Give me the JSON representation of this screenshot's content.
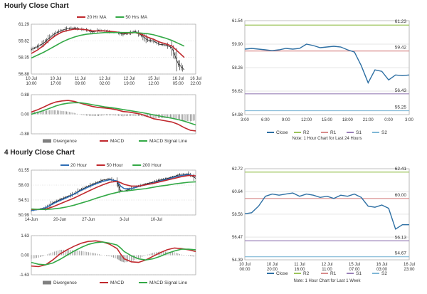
{
  "sections": {
    "hourly_title": "Hourly Close Chart",
    "four_hourly_title": "4 Hourly Close Chart"
  },
  "colors": {
    "price": "#111111",
    "ma_red": "#c0282d",
    "ma_green": "#33a946",
    "ma_blue": "#2e6db4",
    "close": "#2d6fa3",
    "r1": "#d98c8c",
    "r2": "#9cc45a",
    "s1": "#9a80b8",
    "s2": "#7fb7d6",
    "divergence": "#808080"
  },
  "chart_data": [
    {
      "id": "hourly_price",
      "type": "line",
      "title": "Hourly Close Chart",
      "ylim": [
        56.88,
        61.29
      ],
      "yticks": [
        "61.29",
        "59.82",
        "58.35",
        "56.88"
      ],
      "x": [
        0,
        8,
        16,
        24,
        32,
        40,
        48,
        56,
        64,
        72,
        80,
        88,
        96,
        104,
        112,
        120,
        128,
        136,
        144,
        152,
        160,
        168,
        176,
        184,
        192,
        200
      ],
      "xticks": [
        {
          "pos": 0,
          "label": "10 Jul",
          "sub": "10:00"
        },
        {
          "pos": 32,
          "label": "10 Jul",
          "sub": "17:00"
        },
        {
          "pos": 64,
          "label": "11 Jul",
          "sub": "09:00"
        },
        {
          "pos": 96,
          "label": "12 Jul",
          "sub": "02:00"
        },
        {
          "pos": 128,
          "label": "12 Jul",
          "sub": "19:00"
        },
        {
          "pos": 160,
          "label": "15 Jul",
          "sub": "12:00"
        },
        {
          "pos": 192,
          "label": "16 Jul",
          "sub": "05:00"
        },
        {
          "pos": 215,
          "label": "16 Jul",
          "sub": "22:00"
        }
      ],
      "xmax": 215,
      "legend": [
        "20 Hr MA",
        "50 Hrs MA"
      ],
      "series": [
        {
          "name": "Price",
          "color": "#111111",
          "values": [
            59.05,
            59.3,
            59.6,
            60.1,
            60.5,
            60.75,
            60.9,
            60.95,
            60.85,
            60.8,
            60.6,
            60.75,
            60.7,
            60.6,
            60.55,
            60.4,
            60.5,
            60.65,
            60.3,
            59.9,
            59.8,
            59.5,
            59.45,
            59.2,
            57.8,
            57.25
          ]
        },
        {
          "name": "20 Hr MA",
          "color": "#c0282d",
          "values": [
            58.7,
            59.0,
            59.4,
            59.9,
            60.3,
            60.6,
            60.75,
            60.85,
            60.85,
            60.8,
            60.7,
            60.7,
            60.7,
            60.65,
            60.6,
            60.5,
            60.5,
            60.55,
            60.4,
            60.15,
            59.95,
            59.7,
            59.55,
            59.35,
            58.85,
            58.35
          ]
        },
        {
          "name": "50 Hrs MA",
          "color": "#33a946",
          "values": [
            58.3,
            58.55,
            58.8,
            59.1,
            59.4,
            59.7,
            59.95,
            60.15,
            60.3,
            60.4,
            60.45,
            60.5,
            60.55,
            60.55,
            60.55,
            60.55,
            60.55,
            60.55,
            60.5,
            60.45,
            60.35,
            60.2,
            60.05,
            59.85,
            59.6,
            59.35
          ]
        }
      ]
    },
    {
      "id": "hourly_macd",
      "type": "line",
      "ylim": [
        -0.88,
        0.88
      ],
      "yticks": [
        "0.88",
        "0.00",
        "-0.88"
      ],
      "legend": [
        "Divergence",
        "MACD",
        "MACD Signal Line"
      ],
      "x": [
        0,
        8,
        16,
        24,
        32,
        40,
        48,
        56,
        64,
        72,
        80,
        88,
        96,
        104,
        112,
        120,
        128,
        136,
        144,
        152,
        160,
        168,
        176,
        184,
        192,
        200,
        208,
        215
      ],
      "xmax": 215,
      "series": [
        {
          "name": "MACD",
          "color": "#c0282d",
          "values": [
            0.1,
            0.2,
            0.32,
            0.45,
            0.55,
            0.6,
            0.62,
            0.58,
            0.5,
            0.42,
            0.35,
            0.3,
            0.28,
            0.25,
            0.2,
            0.12,
            0.1,
            0.05,
            0.0,
            -0.1,
            -0.2,
            -0.25,
            -0.3,
            -0.35,
            -0.45,
            -0.6,
            -0.72,
            -0.75
          ]
        },
        {
          "name": "MACD Signal Line",
          "color": "#33a946",
          "values": [
            0.0,
            0.08,
            0.17,
            0.27,
            0.37,
            0.45,
            0.5,
            0.52,
            0.52,
            0.48,
            0.43,
            0.38,
            0.33,
            0.3,
            0.26,
            0.21,
            0.17,
            0.12,
            0.08,
            0.03,
            -0.03,
            -0.08,
            -0.13,
            -0.18,
            -0.24,
            -0.31,
            -0.4,
            -0.48
          ]
        },
        {
          "name": "Divergence",
          "color": "#808080",
          "values": [
            0.1,
            0.12,
            0.15,
            0.18,
            0.18,
            0.15,
            0.12,
            0.06,
            -0.02,
            -0.06,
            -0.08,
            -0.08,
            -0.05,
            -0.05,
            -0.06,
            -0.09,
            -0.07,
            -0.07,
            -0.08,
            -0.13,
            -0.17,
            -0.17,
            -0.17,
            -0.17,
            -0.21,
            -0.29,
            -0.32,
            -0.27
          ]
        }
      ]
    },
    {
      "id": "hourly_pivots",
      "type": "line",
      "note": "Note: 1 Hour Chart for Last 24 Hours",
      "ylim": [
        54.98,
        61.54
      ],
      "yticks": [
        "61.54",
        "59.90",
        "58.26",
        "56.62",
        "54.98"
      ],
      "xticks": [
        "3:00",
        "6:00",
        "9:00",
        "12:00",
        "15:00",
        "18:00",
        "21:00",
        "0:00",
        "3:00"
      ],
      "xmax": 24,
      "x": [
        0,
        1,
        2,
        3,
        4,
        5,
        6,
        7,
        8,
        9,
        10,
        11,
        12,
        13,
        14,
        15,
        16,
        17,
        18,
        19,
        20,
        21,
        22,
        23,
        24
      ],
      "levels": [
        {
          "name": "R2",
          "value": 61.23,
          "label": "61.23"
        },
        {
          "name": "R1",
          "value": 59.42,
          "label": "59.42"
        },
        {
          "name": "S1",
          "value": 56.43,
          "label": "56.43"
        },
        {
          "name": "S2",
          "value": 55.25,
          "label": "55.25"
        }
      ],
      "legend": [
        "Close",
        "R2",
        "R1",
        "S1",
        "S2"
      ],
      "series": [
        {
          "name": "Close",
          "color": "#2d6fa3",
          "values": [
            59.55,
            59.6,
            59.55,
            59.5,
            59.45,
            59.5,
            59.6,
            59.55,
            59.6,
            59.9,
            59.8,
            59.65,
            59.7,
            59.75,
            59.7,
            59.5,
            59.35,
            58.4,
            57.2,
            58.1,
            58.0,
            57.4,
            57.75,
            57.7,
            57.75
          ]
        }
      ]
    },
    {
      "id": "four_hourly_price",
      "type": "line",
      "title": "4 Hourly Close Chart",
      "ylim": [
        50.99,
        61.55
      ],
      "yticks": [
        "61.55",
        "58.03",
        "54.51",
        "50.99"
      ],
      "xticks": [
        {
          "pos": 0,
          "label": "14-Jun"
        },
        {
          "pos": 40,
          "label": "20-Jun"
        },
        {
          "pos": 80,
          "label": "27-Jun"
        },
        {
          "pos": 130,
          "label": "3-Jul"
        },
        {
          "pos": 175,
          "label": "10-Jul"
        }
      ],
      "xmax": 230,
      "legend": [
        "20 Hour",
        "50 Hour",
        "200 Hour"
      ],
      "x": [
        0,
        10,
        20,
        30,
        40,
        50,
        60,
        70,
        80,
        90,
        100,
        110,
        120,
        125,
        130,
        140,
        150,
        160,
        170,
        180,
        190,
        200,
        210,
        220,
        230
      ],
      "series": [
        {
          "name": "Price",
          "color": "#111111",
          "values": [
            52.0,
            52.3,
            52.6,
            53.8,
            54.6,
            55.3,
            56.0,
            57.0,
            57.8,
            58.5,
            59.2,
            59.5,
            58.8,
            56.7,
            56.6,
            57.2,
            57.8,
            58.3,
            58.7,
            59.2,
            59.6,
            60.1,
            60.6,
            60.7,
            59.6
          ]
        },
        {
          "name": "20 Hour",
          "color": "#2e6db4",
          "values": [
            52.1,
            52.3,
            52.7,
            53.6,
            54.4,
            55.1,
            55.9,
            56.8,
            57.6,
            58.3,
            58.9,
            59.3,
            59.0,
            57.8,
            57.2,
            57.2,
            57.7,
            58.1,
            58.5,
            59.0,
            59.4,
            59.9,
            60.3,
            60.5,
            60.1
          ]
        },
        {
          "name": "50 Hour",
          "color": "#c0282d",
          "values": [
            52.3,
            52.3,
            52.4,
            52.9,
            53.6,
            54.3,
            55.0,
            55.8,
            56.6,
            57.4,
            58.1,
            58.7,
            58.9,
            58.6,
            58.2,
            57.8,
            57.8,
            58.1,
            58.4,
            58.8,
            59.2,
            59.6,
            60.0,
            60.3,
            60.2
          ]
        },
        {
          "name": "200 Hour",
          "color": "#33a946",
          "values": [
            52.4,
            52.3,
            52.3,
            52.4,
            52.6,
            52.9,
            53.3,
            53.8,
            54.3,
            54.9,
            55.4,
            55.9,
            56.3,
            56.5,
            56.6,
            56.8,
            57.0,
            57.2,
            57.5,
            57.8,
            58.0,
            58.3,
            58.5,
            58.7,
            58.8
          ]
        }
      ]
    },
    {
      "id": "four_hourly_macd",
      "type": "line",
      "ylim": [
        -1.63,
        1.63
      ],
      "yticks": [
        "1.63",
        "0.00",
        "-1.63"
      ],
      "legend": [
        "Divergence",
        "MACD",
        "MACD Signal Line"
      ],
      "xmax": 230,
      "x": [
        0,
        10,
        20,
        30,
        40,
        50,
        60,
        70,
        80,
        90,
        100,
        110,
        120,
        125,
        130,
        140,
        150,
        160,
        170,
        180,
        190,
        200,
        210,
        220,
        230
      ],
      "series": [
        {
          "name": "MACD",
          "color": "#c0282d",
          "values": [
            -0.9,
            -0.95,
            -0.8,
            -0.4,
            0.1,
            0.45,
            0.75,
            1.0,
            1.15,
            1.2,
            1.1,
            0.9,
            0.55,
            0.1,
            -0.3,
            -0.55,
            -0.6,
            -0.4,
            -0.1,
            0.2,
            0.45,
            0.6,
            0.55,
            0.45,
            0.3
          ]
        },
        {
          "name": "MACD Signal Line",
          "color": "#33a946",
          "values": [
            -0.6,
            -0.75,
            -0.8,
            -0.65,
            -0.35,
            0.0,
            0.35,
            0.65,
            0.9,
            1.05,
            1.1,
            1.0,
            0.85,
            0.6,
            0.3,
            -0.05,
            -0.3,
            -0.4,
            -0.3,
            -0.1,
            0.15,
            0.35,
            0.5,
            0.5,
            0.45
          ]
        },
        {
          "name": "Divergence",
          "color": "#808080",
          "values": [
            -0.3,
            -0.2,
            0.0,
            0.25,
            0.45,
            0.45,
            0.4,
            0.35,
            0.25,
            0.15,
            0.0,
            -0.1,
            -0.3,
            -0.5,
            -0.6,
            -0.5,
            -0.3,
            0.0,
            0.2,
            0.3,
            0.3,
            0.25,
            0.05,
            -0.05,
            -0.15
          ]
        }
      ]
    },
    {
      "id": "four_hourly_pivots",
      "type": "line",
      "note": "Note: 1 Hour Chart for Last 1 Week",
      "ylim": [
        54.39,
        62.72
      ],
      "yticks": [
        "62.72",
        "60.64",
        "58.56",
        "56.47",
        "54.39"
      ],
      "xticks": [
        {
          "label": "10 Jul",
          "sub": "00:00"
        },
        {
          "label": "10 Jul",
          "sub": "20:00"
        },
        {
          "label": "11 Jul",
          "sub": "16:00"
        },
        {
          "label": "12 Jul",
          "sub": "11:00"
        },
        {
          "label": "15 Jul",
          "sub": "07:00"
        },
        {
          "label": "16 Jul",
          "sub": "03:00"
        },
        {
          "label": "16 Jul",
          "sub": "23:00"
        }
      ],
      "xmax": 24,
      "x": [
        0,
        1,
        2,
        3,
        4,
        5,
        6,
        7,
        8,
        9,
        10,
        11,
        12,
        13,
        14,
        15,
        16,
        17,
        18,
        19,
        20,
        21,
        22,
        23,
        24
      ],
      "levels": [
        {
          "name": "R2",
          "value": 62.41,
          "label": "62.41"
        },
        {
          "name": "R1",
          "value": 60.0,
          "label": "60.00"
        },
        {
          "name": "S1",
          "value": 56.13,
          "label": "56.13"
        },
        {
          "name": "S2",
          "value": 54.67,
          "label": "54.67"
        }
      ],
      "legend": [
        "Close",
        "R2",
        "R1",
        "S1",
        "S2"
      ],
      "series": [
        {
          "name": "Close",
          "color": "#2d6fa3",
          "values": [
            58.6,
            58.7,
            59.3,
            60.2,
            60.4,
            60.3,
            60.4,
            60.5,
            60.2,
            60.4,
            60.3,
            60.1,
            60.2,
            60.0,
            60.3,
            60.2,
            60.4,
            60.1,
            59.3,
            59.2,
            59.4,
            59.1,
            57.2,
            57.6,
            57.6
          ]
        }
      ]
    }
  ]
}
